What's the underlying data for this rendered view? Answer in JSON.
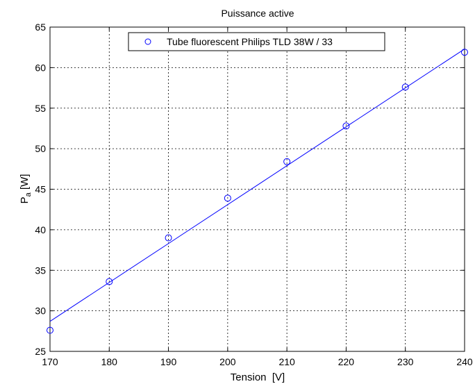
{
  "chart_data": {
    "type": "scatter",
    "title": "Puissance active",
    "xlabel": "Tension  [V]",
    "ylabel_main": "P",
    "ylabel_sub": "a",
    "ylabel_unit": " [W]",
    "xlim": [
      170,
      240
    ],
    "ylim": [
      25,
      65
    ],
    "xticks": [
      170,
      180,
      190,
      200,
      210,
      220,
      230,
      240
    ],
    "yticks": [
      25,
      30,
      35,
      40,
      45,
      50,
      55,
      60,
      65
    ],
    "grid": true,
    "legend_position": "top",
    "series": [
      {
        "name": "Tube fluorescent Philips TLD 38W / 33",
        "marker": "circle",
        "color": "#0000ff",
        "x": [
          170,
          180,
          190,
          200,
          210,
          220,
          230,
          240
        ],
        "y": [
          27.6,
          33.6,
          39.0,
          43.9,
          48.4,
          52.8,
          57.6,
          61.9
        ]
      }
    ],
    "fit_line": {
      "color": "#0000ff",
      "x": [
        170,
        240
      ],
      "y": [
        28.7,
        62.3
      ]
    }
  }
}
